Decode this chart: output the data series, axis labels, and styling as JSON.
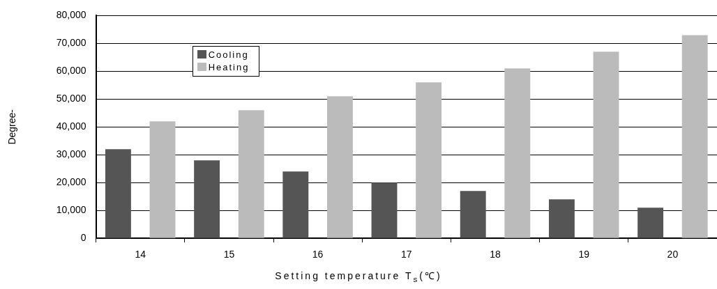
{
  "chart_data": {
    "type": "bar",
    "ylabel": "Degree-",
    "xlabel": "Setting temperature T$_{s}$(℃)",
    "categories": [
      "14",
      "15",
      "16",
      "17",
      "18",
      "19",
      "20"
    ],
    "series": [
      {
        "name": "Cooling",
        "color": "#555555",
        "values": [
          32000,
          28000,
          24000,
          20000,
          17000,
          14000,
          11000
        ]
      },
      {
        "name": "Heating",
        "color": "#bbbbbb",
        "values": [
          42000,
          46000,
          51000,
          56000,
          61000,
          67000,
          73000
        ]
      }
    ],
    "ylim": [
      0,
      80000
    ],
    "yticks": [
      {
        "value": 0,
        "label": "0"
      },
      {
        "value": 10000,
        "label": "10,000"
      },
      {
        "value": 20000,
        "label": "20,000"
      },
      {
        "value": 30000,
        "label": "30,000"
      },
      {
        "value": 40000,
        "label": "40,000"
      },
      {
        "value": 50000,
        "label": "50,000"
      },
      {
        "value": 60000,
        "label": "60,000"
      },
      {
        "value": 70000,
        "label": "70,000"
      },
      {
        "value": 80000,
        "label": "80,000"
      }
    ],
    "grid": "y",
    "legend": "top left"
  }
}
